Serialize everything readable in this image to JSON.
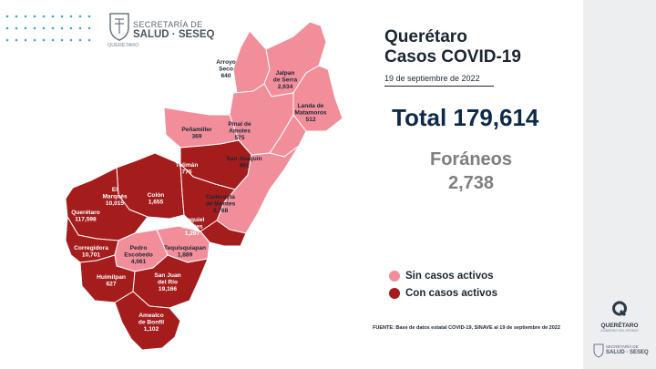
{
  "header": {
    "logo_line1": "SECRETARÍA DE",
    "logo_line2": "SALUD · SESEQ",
    "logo_line3": "QUERÉTARO"
  },
  "title": {
    "line1": "Querétaro",
    "line2": "Casos COVID-19",
    "date": "19 de septiembre de 2022"
  },
  "total": {
    "label": "Total 179,614"
  },
  "foraneos": {
    "label": "Foráneos",
    "value": "2,738"
  },
  "legend": {
    "inactive_label": "Sin casos activos",
    "active_label": "Con casos activos",
    "inactive_color": "#f28e9a",
    "active_color": "#a51c1c"
  },
  "source": "FUENTE: Base de datos estatal COVID-19, SINAVE al 19 de septiembre de 2022",
  "map": {
    "municipalities": [
      {
        "name": "Arroyo Seco",
        "line1": "Arroyo",
        "line2": "Seco",
        "cases": "640",
        "active": false
      },
      {
        "name": "Jalpan de Serra",
        "line1": "Jalpan",
        "line2": "de Serra",
        "cases": "2,634",
        "active": false
      },
      {
        "name": "Landa de Matamoros",
        "line1": "Landa de",
        "line2": "Matamoros",
        "cases": "512",
        "active": false
      },
      {
        "name": "Pinal de Amoles",
        "line1": "Pinal de",
        "line2": "Amoles",
        "cases": "575",
        "active": false
      },
      {
        "name": "Peñamiller",
        "line1": "Peñamiller",
        "line2": "",
        "cases": "369",
        "active": false
      },
      {
        "name": "San Joaquín",
        "line1": "San Joaquín",
        "line2": "",
        "cases": "491",
        "active": false
      },
      {
        "name": "Tolimán",
        "line1": "Tolimán",
        "line2": "",
        "cases": "776",
        "active": true
      },
      {
        "name": "Cadereyta de Montes",
        "line1": "Cadereyta",
        "line2": "de Montes",
        "cases": "2,768",
        "active": false
      },
      {
        "name": "El Marqués",
        "line1": "El",
        "line2": "Marqués",
        "cases": "10,015",
        "active": true
      },
      {
        "name": "Colón",
        "line1": "Colón",
        "line2": "",
        "cases": "1,655",
        "active": true
      },
      {
        "name": "Querétaro",
        "line1": "Querétaro",
        "line2": "",
        "cases": "117,598",
        "active": true
      },
      {
        "name": "Ezequiel Montes",
        "line1": "Ezequiel",
        "line2": "Montes",
        "cases": "1,297",
        "active": true
      },
      {
        "name": "Tequisquiapan",
        "line1": "Tequisquiapan",
        "line2": "",
        "cases": "1,889",
        "active": false
      },
      {
        "name": "Corregidora",
        "line1": "Corregidora",
        "line2": "",
        "cases": "10,701",
        "active": true
      },
      {
        "name": "Pedro Escobedo",
        "line1": "Pedro",
        "line2": "Escobedo",
        "cases": "4,061",
        "active": false
      },
      {
        "name": "Huimilpan",
        "line1": "Huimilpan",
        "line2": "",
        "cases": "627",
        "active": true
      },
      {
        "name": "San Juan del Río",
        "line1": "San Juan",
        "line2": "del Río",
        "cases": "19,166",
        "active": true
      },
      {
        "name": "Amealco de Bonfil",
        "line1": "Amealco",
        "line2": "de Bonfil",
        "cases": "1,102",
        "active": true
      }
    ]
  },
  "footer_logo": {
    "name": "QUERÉTARO",
    "sub": "GOBIERNO DEL ESTADO",
    "line1": "SECRETARÍA DE",
    "line2": "SALUD · SESEQ"
  }
}
